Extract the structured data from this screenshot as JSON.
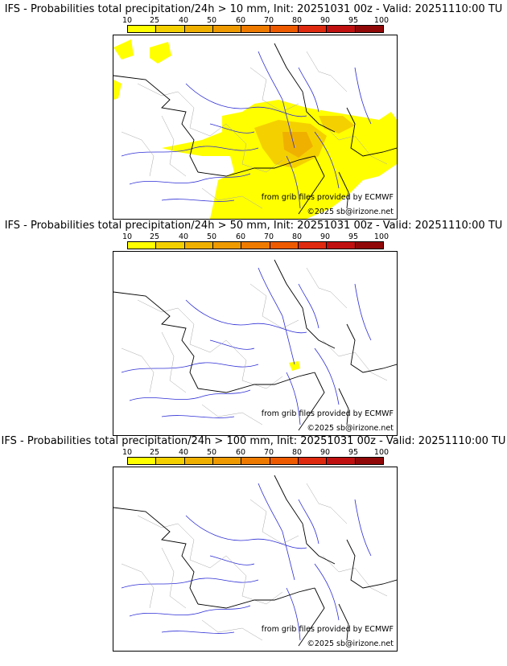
{
  "panels": [
    {
      "title": "IFS - Probabilities total precipitation/24h > 10 mm, Init: 20251031 00z - Valid: 20251110:00 TU",
      "threshold_mm": 10
    },
    {
      "title": "IFS - Probabilities total precipitation/24h > 50 mm, Init: 20251031 00z - Valid: 20251110:00 TU",
      "threshold_mm": 50
    },
    {
      "title": "IFS - Probabilities total precipitation/24h > 100 mm, Init: 20251031 00z - Valid: 20251110:00 TU",
      "threshold_mm": 100
    }
  ],
  "scale": {
    "labels": [
      "10",
      "25",
      "40",
      "50",
      "60",
      "70",
      "80",
      "90",
      "95",
      "100"
    ],
    "colors": [
      "#ffff00",
      "#f5d000",
      "#f0b000",
      "#ee9a00",
      "#ee7a00",
      "#ee5a00",
      "#e02a10",
      "#c01010",
      "#900808",
      "#600000"
    ]
  },
  "credits": {
    "grib": "from grib files provided by ECMWF",
    "copyright": "©2025 sb@irizone.net"
  },
  "map_colors": {
    "rivers": "#2d2dd6",
    "borders": "#000000",
    "regions": "#a8a8a8"
  }
}
